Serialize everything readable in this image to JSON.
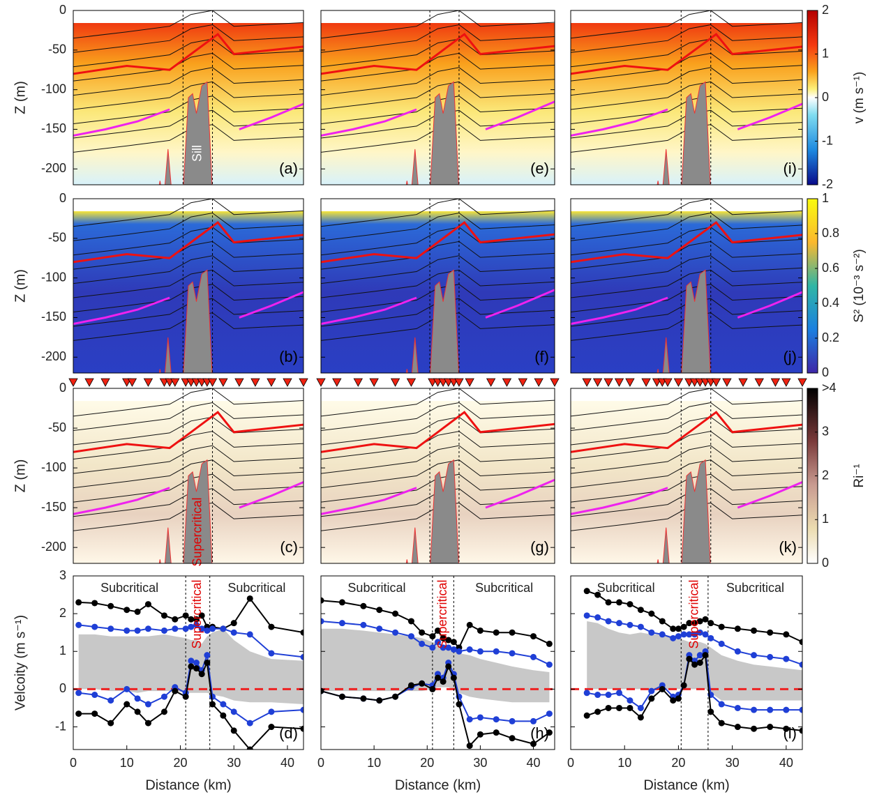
{
  "chart_data": [
    {
      "type": "heatmap",
      "panel_label": "(a)",
      "ylabel": "Z (m)",
      "xlim": [
        0,
        43
      ],
      "ylim": [
        -220,
        0
      ],
      "yticks": [
        0,
        -50,
        -100,
        -150,
        -200
      ],
      "annotations": [
        "Sill"
      ],
      "annotation_color": "#ffffff"
    },
    {
      "type": "heatmap",
      "panel_label": "(e)",
      "xlim": [
        0,
        44
      ],
      "ylim": [
        -220,
        0
      ],
      "yticks": [
        0,
        -50,
        -100,
        -150,
        -200
      ]
    },
    {
      "type": "heatmap",
      "panel_label": "(i)",
      "xlim": [
        0,
        43
      ],
      "ylim": [
        -220,
        0
      ],
      "yticks": [
        0,
        -50,
        -100,
        -150,
        -200
      ],
      "colorbar": {
        "label": "v (m s⁻¹)",
        "lim": [
          -2,
          2
        ],
        "ticks": [
          2,
          1,
          0,
          -1,
          -2
        ]
      }
    },
    {
      "type": "heatmap",
      "panel_label": "(b)",
      "ylabel": "Z (m)",
      "xlim": [
        0,
        43
      ],
      "ylim": [
        -220,
        0
      ],
      "yticks": [
        0,
        -50,
        -100,
        -150,
        -200
      ]
    },
    {
      "type": "heatmap",
      "panel_label": "(f)",
      "xlim": [
        0,
        44
      ],
      "ylim": [
        -220,
        0
      ],
      "yticks": [
        0,
        -50,
        -100,
        -150,
        -200
      ]
    },
    {
      "type": "heatmap",
      "panel_label": "(j)",
      "xlim": [
        0,
        43
      ],
      "ylim": [
        -220,
        0
      ],
      "yticks": [
        0,
        -50,
        -100,
        -150,
        -200
      ],
      "colorbar": {
        "label": "S² (10⁻³ s⁻²)",
        "lim": [
          0,
          1
        ],
        "ticks": [
          1,
          0.8,
          0.6,
          0.4,
          0.2,
          0
        ]
      }
    },
    {
      "type": "heatmap",
      "panel_label": "(c)",
      "ylabel": "Z (m)",
      "xlim": [
        0,
        43
      ],
      "ylim": [
        -220,
        0
      ],
      "yticks": [
        0,
        -50,
        -100,
        -150,
        -200
      ],
      "annotations": [
        "Supercritical"
      ],
      "annotation_color": "#e00000",
      "stations": [
        0,
        3,
        6,
        10,
        11,
        14,
        17,
        18,
        19,
        21,
        22,
        23,
        24,
        25,
        26,
        28,
        31,
        34,
        37,
        40,
        43
      ]
    },
    {
      "type": "heatmap",
      "panel_label": "(g)",
      "xlim": [
        0,
        44
      ],
      "ylim": [
        -220,
        0
      ],
      "yticks": [
        0,
        -50,
        -100,
        -150,
        -200
      ],
      "stations": [
        0,
        3,
        7,
        10,
        14,
        17,
        21,
        22,
        23,
        24,
        25,
        26,
        28,
        32,
        35,
        38,
        41,
        44
      ]
    },
    {
      "type": "heatmap",
      "panel_label": "(k)",
      "xlim": [
        0,
        43
      ],
      "ylim": [
        -220,
        0
      ],
      "yticks": [
        0,
        -50,
        -100,
        -150,
        -200
      ],
      "stations": [
        3,
        5,
        7,
        9,
        11,
        14,
        16,
        17,
        18,
        20,
        22,
        23,
        24,
        25,
        26,
        27,
        29,
        32,
        35,
        38,
        40,
        43
      ],
      "colorbar": {
        "label": "Ri⁻¹",
        "lim": [
          0,
          4
        ],
        "ticks": [
          {
            "value": 4,
            "label": ">4"
          },
          3,
          2,
          1,
          0
        ]
      }
    },
    {
      "type": "line",
      "panel_label": "(d)",
      "ylabel": "Velcoity (m s⁻¹)",
      "xlabel": "Distance (km)",
      "xlim": [
        0,
        43
      ],
      "xticks": [
        0,
        10,
        20,
        30,
        40
      ],
      "ylim": [
        -1.6,
        3
      ],
      "yticks": [
        3,
        2,
        1,
        0,
        -1
      ],
      "annotations": [
        "Subcritical",
        "Supercritical",
        "Subcritical"
      ],
      "vlines": [
        21,
        25.5
      ],
      "hline": 0,
      "x": [
        1,
        4,
        7,
        10,
        12,
        14,
        17,
        19,
        21,
        22,
        23,
        24,
        25,
        26,
        28,
        30,
        33,
        37,
        43
      ],
      "band": {
        "color": "#c8c8c8",
        "upper": [
          1.45,
          1.45,
          1.4,
          1.4,
          1.4,
          1.4,
          1.45,
          1.4,
          1.35,
          1.3,
          1.3,
          1.2,
          1.4,
          1.5,
          1.6,
          1.3,
          1.0,
          0.8,
          0.75
        ],
        "lower": [
          0,
          0,
          -0.05,
          -0.05,
          -0.1,
          -0.05,
          -0.05,
          -0.05,
          -0.1,
          -0.1,
          -0.1,
          -0.1,
          -0.1,
          -0.15,
          -0.2,
          -0.3,
          -0.35,
          -0.35,
          -0.4
        ]
      },
      "series": [
        {
          "color": "#000000",
          "values": [
            2.3,
            2.28,
            2.2,
            2.1,
            2.05,
            2.25,
            1.95,
            1.85,
            1.95,
            1.85,
            1.85,
            1.95,
            1.65,
            1.65,
            1.6,
            1.75,
            2.4,
            1.65,
            1.5
          ]
        },
        {
          "color": "#1f3fd6",
          "values": [
            1.7,
            1.65,
            1.6,
            1.55,
            1.55,
            1.6,
            1.55,
            1.6,
            1.6,
            1.65,
            1.7,
            1.6,
            1.55,
            1.6,
            1.6,
            1.5,
            1.45,
            0.95,
            0.85
          ]
        },
        {
          "color": "#1f3fd6",
          "values": [
            -0.1,
            -0.15,
            -0.3,
            0.0,
            -0.25,
            -0.4,
            -0.2,
            0.05,
            -0.1,
            0.75,
            0.7,
            0.5,
            0.9,
            -0.2,
            -0.4,
            -0.6,
            -0.9,
            -0.6,
            -0.55
          ]
        },
        {
          "color": "#000000",
          "values": [
            -0.65,
            -0.65,
            -0.9,
            -0.4,
            -0.6,
            -0.9,
            -0.6,
            -0.05,
            -0.2,
            0.6,
            0.55,
            0.4,
            0.7,
            -0.4,
            -0.7,
            -1.1,
            -1.6,
            -1.0,
            -1.05
          ]
        }
      ]
    },
    {
      "type": "line",
      "panel_label": "(h)",
      "xlabel": "Distance (km)",
      "xlim": [
        0,
        44
      ],
      "xticks": [
        0,
        10,
        20,
        30,
        40
      ],
      "ylim": [
        -1.6,
        3
      ],
      "yticks": [
        3,
        2,
        1,
        0,
        -1
      ],
      "annotations": [
        "Subcritical",
        "Supercritical",
        "Subcritical"
      ],
      "vlines": [
        21,
        25
      ],
      "hline": 0,
      "x": [
        0,
        4,
        8,
        11,
        14,
        17,
        19,
        21,
        22,
        23,
        24,
        25,
        26,
        28,
        30,
        33,
        36,
        40,
        43
      ],
      "band": {
        "color": "#c8c8c8",
        "upper": [
          1.6,
          1.6,
          1.55,
          1.5,
          1.45,
          1.4,
          1.35,
          1.25,
          1.2,
          1.1,
          1.05,
          1.0,
          0.95,
          0.9,
          0.8,
          0.7,
          0.6,
          0.5,
          0.45
        ],
        "lower": [
          -0.05,
          -0.05,
          -0.05,
          -0.05,
          -0.05,
          -0.05,
          -0.05,
          0,
          0.05,
          0.05,
          0.05,
          0,
          -0.1,
          -0.2,
          -0.25,
          -0.3,
          -0.35,
          -0.35,
          -0.35
        ]
      },
      "series": [
        {
          "color": "#000000",
          "values": [
            2.35,
            2.3,
            2.2,
            2.1,
            2.0,
            1.8,
            1.5,
            1.4,
            1.55,
            1.35,
            1.3,
            1.25,
            1.1,
            1.7,
            1.55,
            1.5,
            1.5,
            1.4,
            1.2
          ]
        },
        {
          "color": "#1f3fd6",
          "values": [
            1.8,
            1.75,
            1.7,
            1.6,
            1.5,
            1.4,
            1.2,
            1.1,
            1.25,
            1.1,
            1.1,
            1.05,
            1.0,
            1.05,
            1.0,
            1.0,
            0.95,
            0.85,
            0.65
          ]
        },
        {
          "color": "#1f3fd6",
          "values": [
            -0.05,
            -0.2,
            -0.25,
            -0.3,
            -0.2,
            0.05,
            0.15,
            0.1,
            0.4,
            0.3,
            0.7,
            0.4,
            -0.2,
            -0.8,
            -0.75,
            -0.8,
            -0.85,
            -0.85,
            -0.65
          ]
        },
        {
          "color": "#000000",
          "values": [
            -0.05,
            -0.2,
            -0.25,
            -0.3,
            -0.2,
            0.1,
            0.15,
            0.0,
            0.3,
            0.2,
            0.6,
            0.3,
            -0.4,
            -1.5,
            -1.2,
            -1.15,
            -1.3,
            -1.45,
            -1.15
          ]
        }
      ]
    },
    {
      "type": "line",
      "panel_label": "(l)",
      "xlabel": "Distance (km)",
      "xlim": [
        0,
        43
      ],
      "xticks": [
        0,
        10,
        20,
        30,
        40
      ],
      "ylim": [
        -1.6,
        3
      ],
      "yticks": [
        3,
        2,
        1,
        0,
        -1
      ],
      "annotations": [
        "Subcritical",
        "Supercritical",
        "Subcritical"
      ],
      "vlines": [
        20.5,
        25.5
      ],
      "hline": 0,
      "x": [
        3,
        5,
        7,
        9,
        11,
        13,
        15,
        17,
        19,
        20,
        21,
        22,
        23,
        24,
        25,
        26,
        28,
        31,
        34,
        37,
        40,
        43
      ],
      "band": {
        "color": "#c8c8c8",
        "upper": [
          1.8,
          1.75,
          1.6,
          1.5,
          1.45,
          1.5,
          1.45,
          1.45,
          1.4,
          1.35,
          1.3,
          1.25,
          1.25,
          1.25,
          1.2,
          1.1,
          0.9,
          0.75,
          0.65,
          0.6,
          0.55,
          0.5
        ],
        "lower": [
          0,
          0,
          0,
          0,
          0,
          0,
          0,
          0,
          0,
          0,
          0,
          0,
          0,
          0,
          0,
          -0.1,
          -0.3,
          -0.3,
          -0.3,
          -0.3,
          -0.3,
          -0.3
        ]
      },
      "series": [
        {
          "color": "#000000",
          "values": [
            2.6,
            2.5,
            2.3,
            2.3,
            2.25,
            2.1,
            2.0,
            1.8,
            1.6,
            1.6,
            1.65,
            1.75,
            1.75,
            1.8,
            1.85,
            1.75,
            1.65,
            1.6,
            1.55,
            1.5,
            1.45,
            1.25
          ]
        },
        {
          "color": "#1f3fd6",
          "values": [
            1.95,
            1.9,
            1.8,
            1.75,
            1.7,
            1.65,
            1.5,
            1.45,
            1.35,
            1.4,
            1.45,
            1.45,
            1.45,
            1.5,
            1.45,
            1.35,
            1.2,
            1.0,
            0.9,
            0.85,
            0.8,
            0.65
          ]
        },
        {
          "color": "#1f3fd6",
          "values": [
            -0.1,
            -0.15,
            -0.15,
            -0.1,
            -0.3,
            -0.5,
            -0.05,
            0.1,
            -0.2,
            -0.15,
            0.1,
            0.9,
            0.75,
            0.9,
            1.0,
            -0.15,
            -0.4,
            -0.5,
            -0.55,
            -0.55,
            -0.55,
            -0.55
          ]
        },
        {
          "color": "#000000",
          "values": [
            -0.7,
            -0.6,
            -0.5,
            -0.5,
            -0.5,
            -0.75,
            -0.25,
            0.0,
            -0.3,
            -0.25,
            0.1,
            0.8,
            0.65,
            0.7,
            0.9,
            -0.6,
            -0.9,
            -1.0,
            -1.05,
            -1.0,
            -1.05,
            -1.1
          ]
        }
      ]
    }
  ]
}
